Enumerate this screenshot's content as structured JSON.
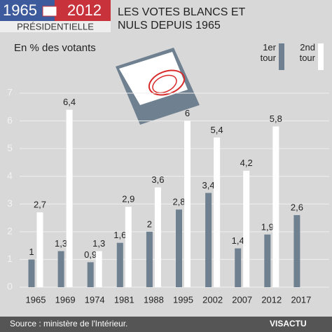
{
  "header": {
    "logo": {
      "year_start": "1965",
      "year_end": "2012",
      "label": "PRÉSIDENTIELLE"
    }
  },
  "chart_data": {
    "type": "bar",
    "title": "LES VOTES BLANCS ET NULS DEPUIS 1965",
    "ylabel": "En % des votants",
    "categories": [
      "1965",
      "1969",
      "1974",
      "1981",
      "1988",
      "1995",
      "2002",
      "2007",
      "2012",
      "2017"
    ],
    "series": [
      {
        "name": "1er tour",
        "color": "#6f8090",
        "values": [
          1,
          1.3,
          0.9,
          1.6,
          2,
          2.8,
          3.4,
          1.4,
          1.9,
          2.6
        ],
        "value_labels": [
          "1",
          "1,3",
          "0,9",
          "1,6",
          "2",
          "2,8",
          "3,4",
          "1,4",
          "1,9",
          "2,6"
        ]
      },
      {
        "name": "2nd tour",
        "color": "#ffffff",
        "values": [
          2.7,
          6.4,
          1.3,
          2.9,
          3.6,
          6,
          5.4,
          4.2,
          5.8,
          null
        ],
        "value_labels": [
          "2,7",
          "6,4",
          "1,3",
          "2,9",
          "3,6",
          "6",
          "5,4",
          "4,2",
          "5,8",
          null
        ]
      }
    ],
    "ylim": [
      0,
      7
    ],
    "yticks": [
      0,
      1,
      2,
      3,
      4,
      5,
      6,
      7
    ],
    "grid": true
  },
  "footer": {
    "source": "Source : ministère de l'Intérieur.",
    "brand": "VISACTU"
  }
}
